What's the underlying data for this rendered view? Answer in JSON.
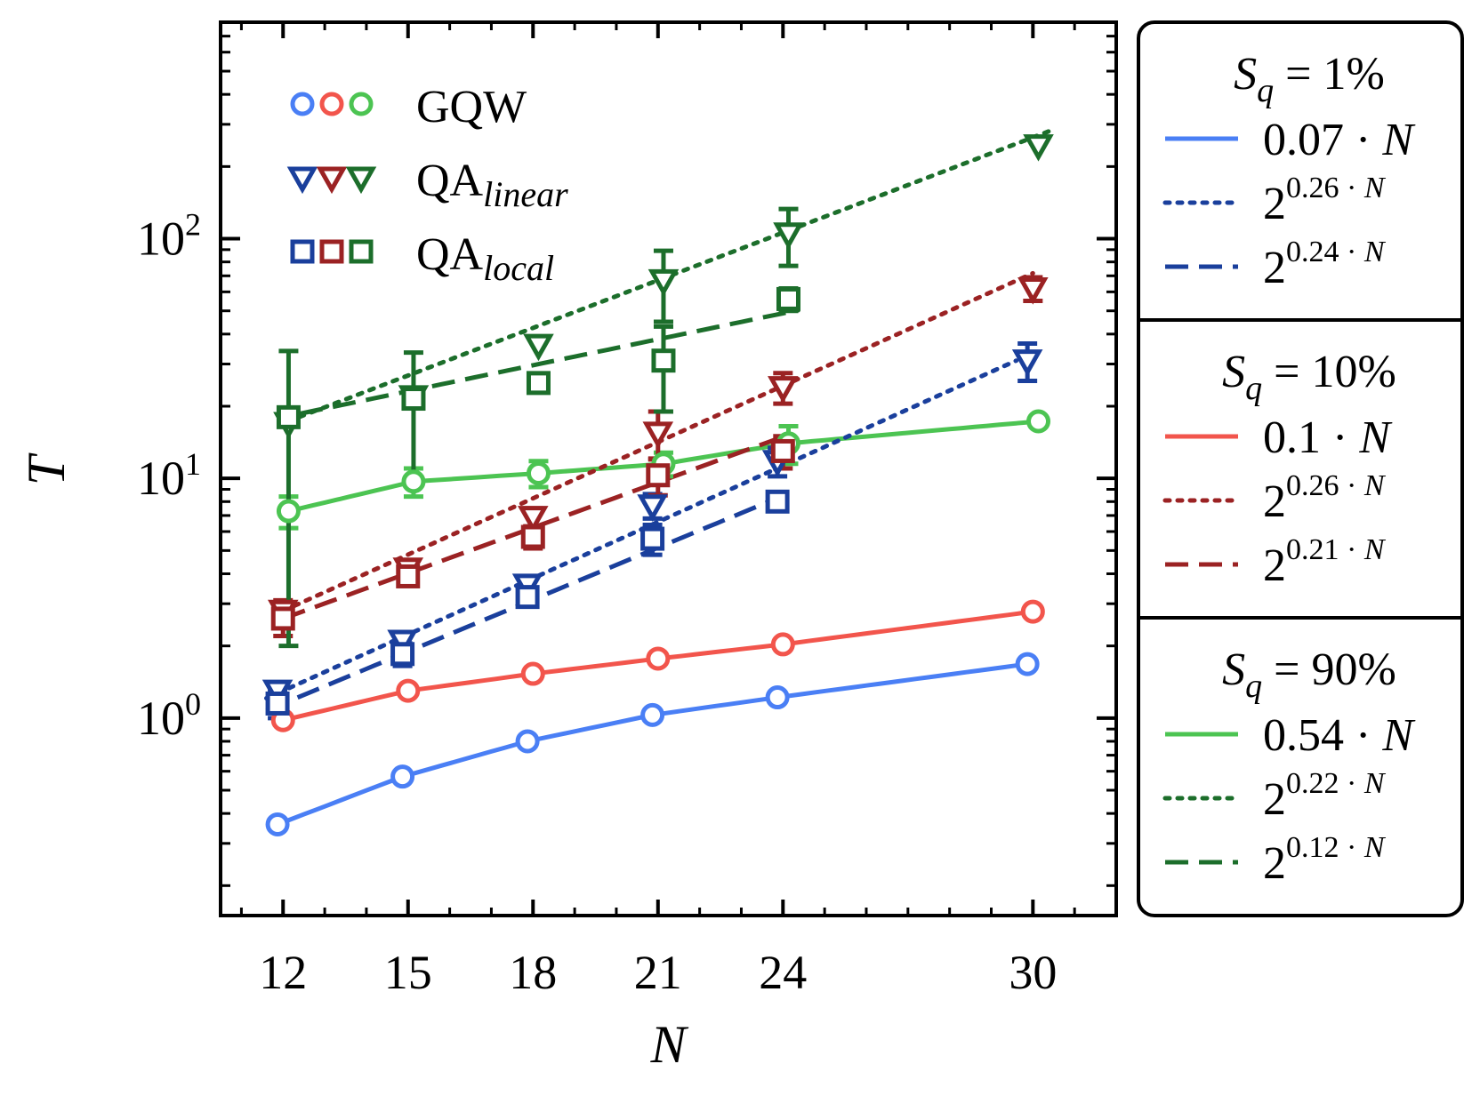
{
  "chart_data": {
    "type": "scatter",
    "xlabel": "N",
    "ylabel": "T",
    "yscale": "log",
    "xlim": [
      10.5,
      32
    ],
    "ylim": [
      0.15,
      800
    ],
    "x_ticks": [
      12,
      15,
      18,
      21,
      24,
      30
    ],
    "y_ticks": [
      {
        "value": 1,
        "base": "10",
        "exp": "0"
      },
      {
        "value": 10,
        "base": "10",
        "exp": "1"
      },
      {
        "value": 100,
        "base": "10",
        "exp": "2"
      }
    ],
    "marker_legend": [
      {
        "label": "GQW",
        "marker": "circle",
        "colors": [
          "#4a7ff5",
          "#f2554c",
          "#4cc452"
        ]
      },
      {
        "label": "QA",
        "sub": "linear",
        "marker": "triangle-down",
        "colors": [
          "#1a3f9c",
          "#9b2223",
          "#1c6e2b"
        ]
      },
      {
        "label": "QA",
        "sub": "local",
        "marker": "square",
        "colors": [
          "#1a3f9c",
          "#9b2223",
          "#1c6e2b"
        ]
      }
    ],
    "fit_legend": [
      {
        "title_sub": "q",
        "title_value": "1%",
        "entries": [
          {
            "style": "solid",
            "color": "#4a7ff5",
            "coef": "0.07",
            "text": "0.07 · N"
          },
          {
            "style": "dotted",
            "color": "#1a3f9c",
            "base": "2",
            "exp": "0.26 · N"
          },
          {
            "style": "dashed",
            "color": "#1a3f9c",
            "base": "2",
            "exp": "0.24 · N"
          }
        ]
      },
      {
        "title_sub": "q",
        "title_value": "10%",
        "entries": [
          {
            "style": "solid",
            "color": "#f2554c",
            "text": "0.1 · N"
          },
          {
            "style": "dotted",
            "color": "#9b2223",
            "base": "2",
            "exp": "0.26 · N"
          },
          {
            "style": "dashed",
            "color": "#9b2223",
            "base": "2",
            "exp": "0.21 · N"
          }
        ]
      },
      {
        "title_sub": "q",
        "title_value": "90%",
        "entries": [
          {
            "style": "solid",
            "color": "#4cc452",
            "text": "0.54 · N"
          },
          {
            "style": "dotted",
            "color": "#1c6e2b",
            "base": "2",
            "exp": "0.22 · N"
          },
          {
            "style": "dashed",
            "color": "#1c6e2b",
            "base": "2",
            "exp": "0.12 · N"
          }
        ]
      }
    ],
    "series": [
      {
        "id": "gqw-1",
        "marker": "circle",
        "color": "#4a7ff5",
        "dx": -0.4,
        "x": [
          12,
          15,
          18,
          21,
          24,
          30
        ],
        "y": [
          0.36,
          0.57,
          0.8,
          1.03,
          1.22,
          1.68
        ]
      },
      {
        "id": "gqw-10",
        "marker": "circle",
        "color": "#f2554c",
        "dx": 0,
        "x": [
          12,
          15,
          18,
          21,
          24,
          30
        ],
        "y": [
          0.98,
          1.3,
          1.53,
          1.77,
          2.03,
          2.78
        ]
      },
      {
        "id": "gqw-90",
        "marker": "circle",
        "color": "#4cc452",
        "dx": 0.4,
        "x": [
          12,
          15,
          18,
          21,
          24,
          30
        ],
        "y": [
          7.3,
          9.7,
          10.5,
          11.5,
          14.0,
          17.3
        ],
        "err": [
          1.1,
          1.3,
          1.3,
          1.3,
          2.5,
          0
        ]
      },
      {
        "id": "qalin-1",
        "marker": "triangle",
        "color": "#1a3f9c",
        "dx": -0.4,
        "x": [
          12,
          15,
          18,
          21,
          24,
          30
        ],
        "y": [
          1.3,
          2.1,
          3.6,
          7.7,
          11.8,
          31.0
        ],
        "err": [
          0,
          0,
          0,
          0.9,
          1.6,
          5.5
        ]
      },
      {
        "id": "qalin-10",
        "marker": "triangle",
        "color": "#9b2223",
        "dx": 0,
        "x": [
          12,
          15,
          18,
          21,
          24,
          30
        ],
        "y": [
          2.8,
          4.2,
          6.9,
          15.5,
          24.0,
          62.0
        ],
        "err": [
          0.3,
          0,
          0.6,
          3.5,
          3.5,
          7.0
        ]
      },
      {
        "id": "qalin-90",
        "marker": "triangle",
        "color": "#1c6e2b",
        "dx": 0.4,
        "x": [
          12,
          15,
          18,
          21,
          24,
          30
        ],
        "y": [
          17.0,
          22.0,
          36.0,
          67.0,
          105.0,
          245.0
        ],
        "err": [
          0,
          0,
          0,
          22.0,
          28.0,
          0
        ]
      },
      {
        "id": "qaloc-1",
        "marker": "square",
        "color": "#1a3f9c",
        "dx": -0.4,
        "x": [
          12,
          15,
          18,
          21,
          24
        ],
        "y": [
          1.15,
          1.85,
          3.2,
          5.6,
          8.0
        ],
        "err": [
          0.15,
          0.2,
          0,
          0.8,
          0
        ]
      },
      {
        "id": "qaloc-10",
        "marker": "square",
        "color": "#9b2223",
        "dx": 0,
        "x": [
          12,
          15,
          18,
          21,
          24
        ],
        "y": [
          2.6,
          3.9,
          5.7,
          10.3,
          13.0
        ],
        "err": [
          0.4,
          0,
          0.6,
          1.8,
          2.0
        ]
      },
      {
        "id": "qaloc-90",
        "marker": "square",
        "color": "#1c6e2b",
        "dx": 0.4,
        "x": [
          12,
          15,
          18,
          21,
          24
        ],
        "y": [
          18.0,
          21.5,
          25.0,
          31.0,
          56.0
        ],
        "err": [
          16.0,
          12.0,
          0,
          12.0,
          6.0
        ]
      }
    ],
    "fits": [
      {
        "id": "fit-gqw-1",
        "style": "solid",
        "color": "#4a7ff5",
        "type": "exp_sqrt",
        "coef": 0.07,
        "x_range": [
          11.6,
          29.6
        ]
      },
      {
        "id": "fit-gqw-10",
        "style": "solid",
        "color": "#f2554c",
        "type": "exp_sqrt",
        "coef": 0.1,
        "x_range": [
          12.0,
          30.0
        ]
      },
      {
        "id": "fit-gqw-90",
        "style": "solid",
        "color": "#4cc452",
        "type": "exp_sqrt",
        "coef": 0.54,
        "x_range": [
          12.4,
          30.4
        ]
      },
      {
        "id": "fit-qalin-1",
        "style": "dotted",
        "color": "#1a3f9c",
        "type": "exp2",
        "rate": 0.26,
        "x_range": [
          11.6,
          29.6
        ]
      },
      {
        "id": "fit-qalin-10",
        "style": "dotted",
        "color": "#9b2223",
        "type": "exp2",
        "rate": 0.26,
        "x_range": [
          12.0,
          30.0
        ]
      },
      {
        "id": "fit-qalin-90",
        "style": "dotted",
        "color": "#1c6e2b",
        "type": "exp2",
        "rate": 0.22,
        "x_range": [
          12.4,
          30.4
        ]
      },
      {
        "id": "fit-qaloc-1",
        "style": "dashed",
        "color": "#1a3f9c",
        "type": "exp2",
        "rate": 0.24,
        "x_range": [
          11.6,
          23.6
        ]
      },
      {
        "id": "fit-qaloc-10",
        "style": "dashed",
        "color": "#9b2223",
        "type": "exp2",
        "rate": 0.21,
        "x_range": [
          12.0,
          24.0
        ]
      },
      {
        "id": "fit-qaloc-90",
        "style": "dashed",
        "color": "#1c6e2b",
        "type": "exp2",
        "rate": 0.12,
        "x_range": [
          12.4,
          24.4
        ]
      }
    ]
  }
}
